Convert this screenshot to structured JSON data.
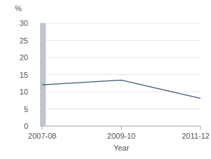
{
  "chart_data": {
    "type": "line",
    "y_label": "%",
    "x_label": "Year",
    "categories": [
      "2007-08",
      "2009-10",
      "2011-12"
    ],
    "values": [
      12,
      13.4,
      8.1
    ],
    "color": "#3d5573",
    "ylim": [
      0,
      30
    ],
    "yticks": [
      0,
      5,
      10,
      15,
      20,
      25,
      30
    ],
    "grid": true
  }
}
